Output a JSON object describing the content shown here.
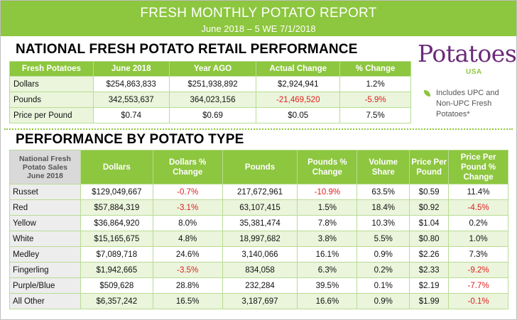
{
  "banner": {
    "title": "FRESH MONTHLY POTATO REPORT",
    "subtitle": "June 2018 – 5 WE 7/1/2018"
  },
  "national": {
    "title": "NATIONAL FRESH POTATO RETAIL PERFORMANCE",
    "headers": [
      "Fresh Potatoes",
      "June 2018",
      "Year AGO",
      "Actual Change",
      "% Change"
    ],
    "rows": [
      {
        "label": "Dollars",
        "cells": [
          "$254,863,833",
          "$251,938,892",
          "$2,924,941",
          "1.2%"
        ]
      },
      {
        "label": "Pounds",
        "cells": [
          "342,553,637",
          "364,023,156",
          "-21,469,520",
          "-5.9%"
        ]
      },
      {
        "label": "Price per Pound",
        "cells": [
          "$0.74",
          "$0.69",
          "$0.05",
          "7.5%"
        ]
      }
    ]
  },
  "logo": {
    "word": "Potatoes",
    "sub": "USA"
  },
  "note": "Includes UPC and Non-UPC Fresh Potatoes*",
  "by_type": {
    "title": "PERFORMANCE BY POTATO TYPE",
    "corner_header": [
      "National Fresh",
      "Potato Sales",
      "June 2018"
    ],
    "headers": [
      "Dollars",
      "Dollars % Change",
      "Pounds",
      "Pounds % Change",
      "Volume Share",
      "Price Per Pound",
      "Price Per Pound % Change"
    ],
    "rows": [
      {
        "label": "Russet",
        "cells": [
          "$129,049,667",
          "-0.7%",
          "217,672,961",
          "-10.9%",
          "63.5%",
          "$0.59",
          "11.4%"
        ]
      },
      {
        "label": "Red",
        "cells": [
          "$57,884,319",
          "-3.1%",
          "63,107,415",
          "1.5%",
          "18.4%",
          "$0.92",
          "-4.5%"
        ]
      },
      {
        "label": "Yellow",
        "cells": [
          "$36,864,920",
          "8.0%",
          "35,381,474",
          "7.8%",
          "10.3%",
          "$1.04",
          "0.2%"
        ]
      },
      {
        "label": "White",
        "cells": [
          "$15,165,675",
          "4.8%",
          "18,997,682",
          "3.8%",
          "5.5%",
          "$0.80",
          "1.0%"
        ]
      },
      {
        "label": "Medley",
        "cells": [
          "$7,089,718",
          "24.6%",
          "3,140,066",
          "16.1%",
          "0.9%",
          "$2.26",
          "7.3%"
        ]
      },
      {
        "label": "Fingerling",
        "cells": [
          "$1,942,665",
          "-3.5%",
          "834,058",
          "6.3%",
          "0.2%",
          "$2.33",
          "-9.2%"
        ]
      },
      {
        "label": "Purple/Blue",
        "cells": [
          "$509,628",
          "28.8%",
          "232,284",
          "39.5%",
          "0.1%",
          "$2.19",
          "-7.7%"
        ]
      },
      {
        "label": "All Other",
        "cells": [
          "$6,357,242",
          "16.5%",
          "3,187,697",
          "16.6%",
          "0.9%",
          "$1.99",
          "-0.1%"
        ]
      }
    ]
  },
  "colors": {
    "brand_green": "#8dc63f",
    "row_tint": "#eaf5dc",
    "negative": "#e02020",
    "logo_purple": "#6b2a7a"
  }
}
